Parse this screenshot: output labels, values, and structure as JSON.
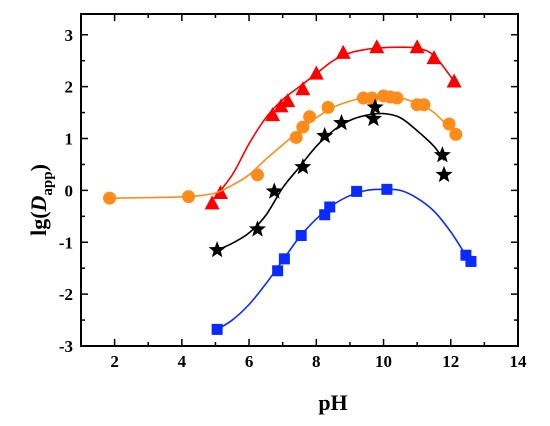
{
  "chart_data": {
    "type": "scatter",
    "xlabel": "pH",
    "ylabel": {
      "main": "lg(",
      "italic": "D",
      "sub": "app",
      "close": ")"
    },
    "xlim": [
      1,
      14
    ],
    "ylim": [
      -3,
      3.4
    ],
    "xticks": [
      2,
      4,
      6,
      8,
      10,
      12,
      14
    ],
    "yticks": [
      -3,
      -2,
      -1,
      0,
      1,
      2,
      3
    ],
    "grid": false,
    "legend": "none",
    "series": [
      {
        "color": "#ff0000",
        "marker": "triangle",
        "points": [
          [
            4.9,
            -0.25
          ],
          [
            5.15,
            -0.05
          ],
          [
            6.7,
            1.45
          ],
          [
            6.95,
            1.62
          ],
          [
            7.15,
            1.72
          ],
          [
            7.6,
            1.95
          ],
          [
            8.0,
            2.25
          ],
          [
            8.8,
            2.65
          ],
          [
            9.8,
            2.76
          ],
          [
            11.0,
            2.76
          ],
          [
            11.5,
            2.55
          ],
          [
            12.1,
            2.1
          ]
        ],
        "curve": [
          [
            4.9,
            -0.2
          ],
          [
            5.5,
            0.3
          ],
          [
            6.0,
            0.9
          ],
          [
            6.5,
            1.4
          ],
          [
            7.0,
            1.75
          ],
          [
            7.5,
            2.0
          ],
          [
            8.0,
            2.25
          ],
          [
            8.5,
            2.5
          ],
          [
            9.0,
            2.65
          ],
          [
            9.5,
            2.72
          ],
          [
            10.0,
            2.75
          ],
          [
            10.5,
            2.76
          ],
          [
            11.0,
            2.74
          ],
          [
            11.5,
            2.6
          ],
          [
            12.1,
            2.1
          ]
        ]
      },
      {
        "color": "#ff8c1a",
        "marker": "circle",
        "points": [
          [
            1.85,
            -0.15
          ],
          [
            4.2,
            -0.12
          ],
          [
            6.25,
            0.3
          ],
          [
            7.4,
            1.02
          ],
          [
            7.6,
            1.22
          ],
          [
            7.8,
            1.42
          ],
          [
            8.35,
            1.6
          ],
          [
            9.4,
            1.78
          ],
          [
            9.65,
            1.78
          ],
          [
            10.0,
            1.82
          ],
          [
            10.2,
            1.8
          ],
          [
            10.4,
            1.78
          ],
          [
            11.0,
            1.65
          ],
          [
            11.2,
            1.65
          ],
          [
            11.95,
            1.28
          ],
          [
            12.15,
            1.08
          ]
        ],
        "curve": [
          [
            1.85,
            -0.15
          ],
          [
            3.0,
            -0.14
          ],
          [
            4.2,
            -0.12
          ],
          [
            5.0,
            -0.05
          ],
          [
            5.5,
            0.1
          ],
          [
            6.0,
            0.3
          ],
          [
            6.5,
            0.6
          ],
          [
            7.0,
            0.88
          ],
          [
            7.5,
            1.15
          ],
          [
            8.0,
            1.4
          ],
          [
            8.5,
            1.6
          ],
          [
            9.0,
            1.72
          ],
          [
            9.5,
            1.8
          ],
          [
            10.0,
            1.82
          ],
          [
            10.5,
            1.78
          ],
          [
            11.0,
            1.68
          ],
          [
            11.5,
            1.5
          ],
          [
            12.15,
            1.08
          ]
        ]
      },
      {
        "color": "#000000",
        "marker": "star",
        "points": [
          [
            5.05,
            -1.15
          ],
          [
            6.25,
            -0.75
          ],
          [
            6.75,
            -0.02
          ],
          [
            7.6,
            0.45
          ],
          [
            8.25,
            1.05
          ],
          [
            8.75,
            1.3
          ],
          [
            9.7,
            1.38
          ],
          [
            9.75,
            1.6
          ],
          [
            11.75,
            0.68
          ],
          [
            11.8,
            0.3
          ]
        ],
        "curve": [
          [
            5.05,
            -1.15
          ],
          [
            5.5,
            -1.02
          ],
          [
            6.0,
            -0.82
          ],
          [
            6.5,
            -0.48
          ],
          [
            7.0,
            0.05
          ],
          [
            7.5,
            0.45
          ],
          [
            8.0,
            0.85
          ],
          [
            8.5,
            1.15
          ],
          [
            9.0,
            1.35
          ],
          [
            9.5,
            1.45
          ],
          [
            10.0,
            1.48
          ],
          [
            10.5,
            1.4
          ],
          [
            11.0,
            1.15
          ],
          [
            11.5,
            0.85
          ],
          [
            11.8,
            0.58
          ]
        ]
      },
      {
        "color": "#0a2bff",
        "marker": "square",
        "points": [
          [
            5.05,
            -2.68
          ],
          [
            6.85,
            -1.55
          ],
          [
            7.05,
            -1.32
          ],
          [
            7.55,
            -0.87
          ],
          [
            8.25,
            -0.47
          ],
          [
            8.4,
            -0.32
          ],
          [
            9.2,
            -0.02
          ],
          [
            10.1,
            0.02
          ],
          [
            12.45,
            -1.25
          ],
          [
            12.6,
            -1.37
          ]
        ],
        "curve": [
          [
            5.05,
            -2.68
          ],
          [
            5.5,
            -2.5
          ],
          [
            6.0,
            -2.2
          ],
          [
            6.5,
            -1.8
          ],
          [
            7.0,
            -1.35
          ],
          [
            7.5,
            -0.9
          ],
          [
            8.0,
            -0.55
          ],
          [
            8.5,
            -0.28
          ],
          [
            9.0,
            -0.1
          ],
          [
            9.5,
            0.0
          ],
          [
            10.0,
            0.02
          ],
          [
            10.5,
            0.0
          ],
          [
            11.0,
            -0.15
          ],
          [
            11.5,
            -0.4
          ],
          [
            12.0,
            -0.8
          ],
          [
            12.45,
            -1.25
          ],
          [
            12.6,
            -1.37
          ]
        ]
      }
    ]
  }
}
